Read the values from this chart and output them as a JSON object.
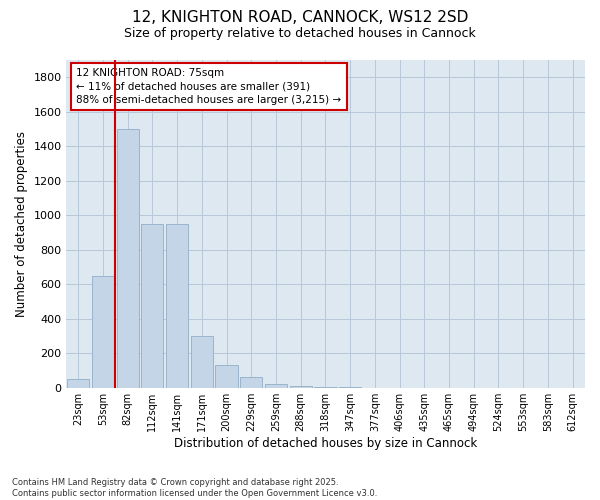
{
  "title_line1": "12, KNIGHTON ROAD, CANNOCK, WS12 2SD",
  "title_line2": "Size of property relative to detached houses in Cannock",
  "xlabel": "Distribution of detached houses by size in Cannock",
  "ylabel": "Number of detached properties",
  "bar_color": "#c5d5e8",
  "bar_edge_color": "#9ab5cc",
  "grid_color": "#b8c8d8",
  "background_color": "#dde8f0",
  "vline_color": "#cc0000",
  "vline_x": 1.5,
  "annotation_text_line1": "12 KNIGHTON ROAD: 75sqm",
  "annotation_text_line2": "← 11% of detached houses are smaller (391)",
  "annotation_text_line3": "88% of semi-detached houses are larger (3,215) →",
  "footnote_line1": "Contains HM Land Registry data © Crown copyright and database right 2025.",
  "footnote_line2": "Contains public sector information licensed under the Open Government Licence v3.0.",
  "categories": [
    "23sqm",
    "53sqm",
    "82sqm",
    "112sqm",
    "141sqm",
    "171sqm",
    "200sqm",
    "229sqm",
    "259sqm",
    "288sqm",
    "318sqm",
    "347sqm",
    "377sqm",
    "406sqm",
    "435sqm",
    "465sqm",
    "494sqm",
    "524sqm",
    "553sqm",
    "583sqm",
    "612sqm"
  ],
  "values": [
    50,
    650,
    1500,
    950,
    950,
    300,
    135,
    65,
    20,
    10,
    5,
    5,
    0,
    0,
    0,
    0,
    0,
    0,
    0,
    0,
    0
  ],
  "ylim": [
    0,
    1900
  ],
  "yticks": [
    0,
    200,
    400,
    600,
    800,
    1000,
    1200,
    1400,
    1600,
    1800
  ]
}
